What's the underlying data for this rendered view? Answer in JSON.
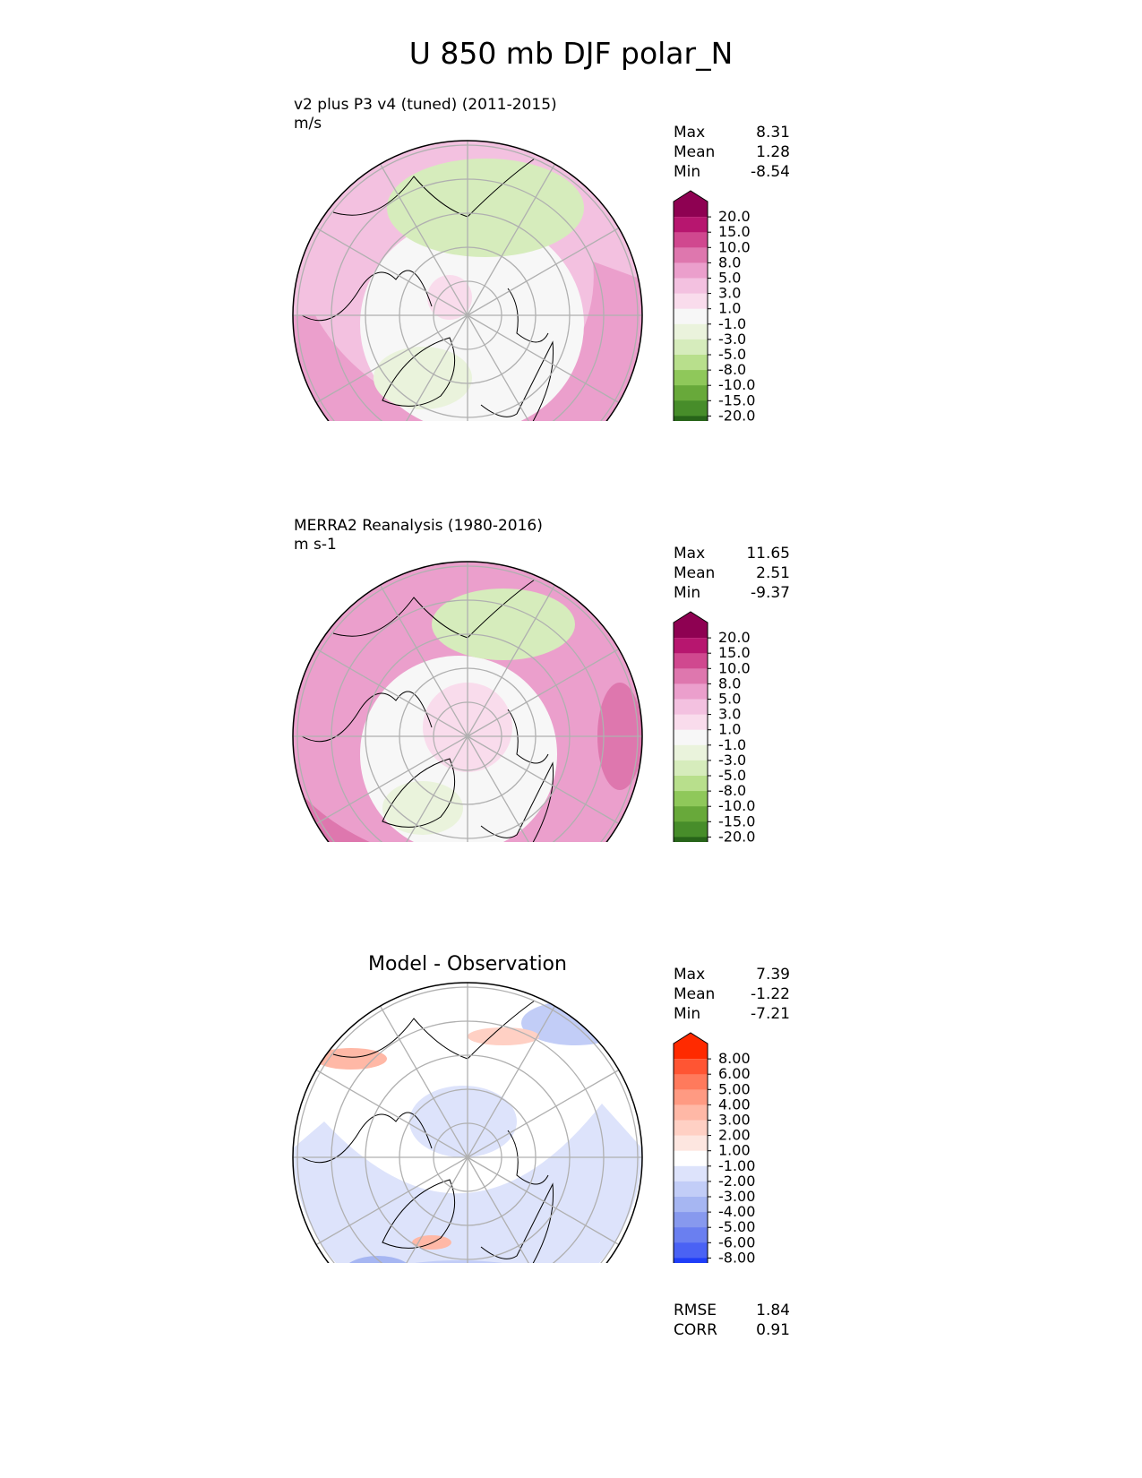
{
  "title": "U 850 mb DJF polar_N",
  "panels": [
    {
      "id": "model",
      "title": "v2 plus P3 v4 (tuned) (2011-2015)",
      "units": "m/s",
      "stats": [
        {
          "label": "Max",
          "value": "8.31"
        },
        {
          "label": "Mean",
          "value": "1.28"
        },
        {
          "label": "Min",
          "value": "-8.54"
        }
      ],
      "colorbar": "cb_field"
    },
    {
      "id": "obs",
      "title": "MERRA2 Reanalysis (1980-2016)",
      "units": "m s-1",
      "stats": [
        {
          "label": "Max",
          "value": "11.65"
        },
        {
          "label": "Mean",
          "value": "2.51"
        },
        {
          "label": "Min",
          "value": "-9.37"
        }
      ],
      "colorbar": "cb_field"
    },
    {
      "id": "diff",
      "title": "Model - Observation",
      "units": "",
      "stats": [
        {
          "label": "Max",
          "value": "7.39"
        },
        {
          "label": "Mean",
          "value": "-1.22"
        },
        {
          "label": "Min",
          "value": "-7.21"
        }
      ],
      "colorbar": "cb_diff",
      "extra_stats": [
        {
          "label": "RMSE",
          "value": "1.84"
        },
        {
          "label": "CORR",
          "value": "0.91"
        }
      ]
    }
  ],
  "cb_field": {
    "labels": [
      "20.0",
      "15.0",
      "10.0",
      "8.0",
      "5.0",
      "3.0",
      "1.0",
      "-1.0",
      "-3.0",
      "-5.0",
      "-8.0",
      "-10.0",
      "-15.0",
      "-20.0"
    ],
    "colors": [
      "#8e0152",
      "#b7166f",
      "#d0488f",
      "#de77ae",
      "#eb9fcc",
      "#f3c1e0",
      "#f9dcec",
      "#f7f7f7",
      "#eaf3dc",
      "#d6ecbc",
      "#b8df8c",
      "#8fc85a",
      "#68a93a",
      "#478d2a",
      "#276419"
    ]
  },
  "cb_diff": {
    "labels": [
      "8.00",
      "6.00",
      "5.00",
      "4.00",
      "3.00",
      "2.00",
      "1.00",
      "-1.00",
      "-2.00",
      "-3.00",
      "-4.00",
      "-5.00",
      "-6.00",
      "-8.00"
    ],
    "colors": [
      "#ff2a00",
      "#ff5533",
      "#ff7a5c",
      "#ff9a82",
      "#ffb8a6",
      "#ffd0c4",
      "#fde6e0",
      "#ffffff",
      "#dde3fb",
      "#c2cdf7",
      "#a6b6f2",
      "#8799ee",
      "#6a7ff0",
      "#4a62f4",
      "#1f3ef8"
    ]
  },
  "map_colors": {
    "land_outline": "#000000",
    "graticule": "#b0b0b0"
  }
}
